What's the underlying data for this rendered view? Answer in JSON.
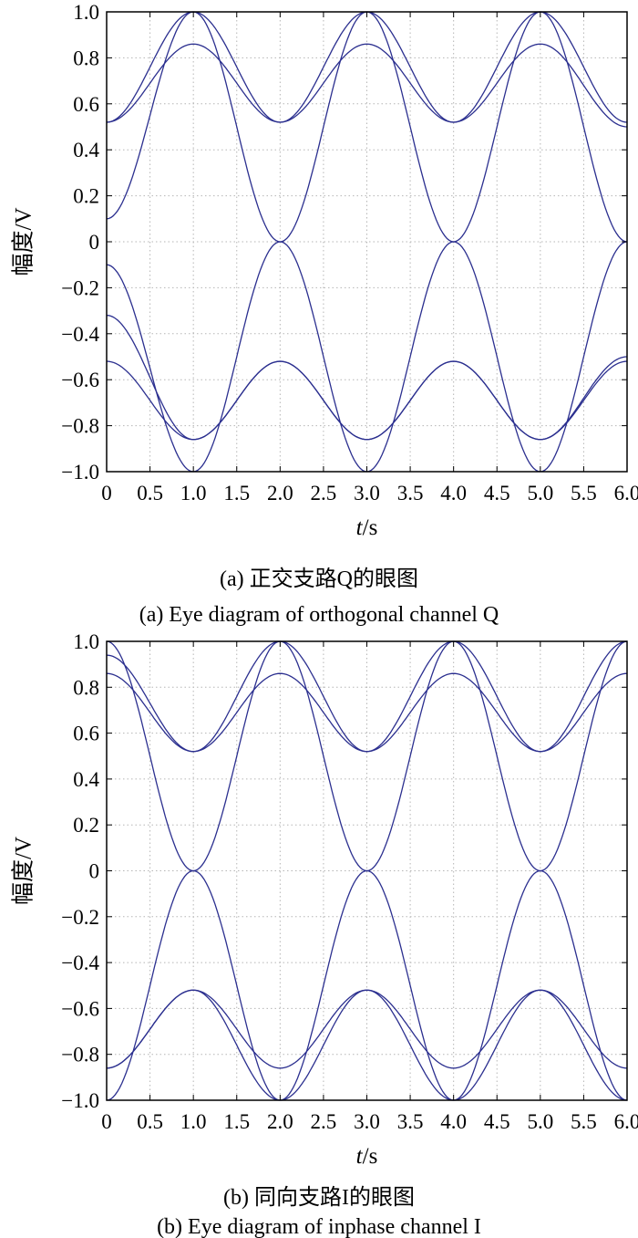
{
  "chart_data": [
    {
      "type": "line",
      "panel": "a",
      "caption_cn": "(a) 正交支路Q的眼图",
      "caption_en": "(a) Eye diagram of orthogonal channel Q",
      "xlabel_var": "t",
      "xlabel_unit": "/s",
      "ylabel": "幅度/V",
      "xlim": [
        0,
        6.0
      ],
      "ylim": [
        -1.0,
        1.0
      ],
      "xticks": [
        "0",
        "0.5",
        "1.0",
        "1.5",
        "2.0",
        "2.5",
        "3.0",
        "3.5",
        "4.0",
        "4.5",
        "5.0",
        "5.5",
        "6.0"
      ],
      "yticks": [
        "1.0",
        "0.8",
        "0.6",
        "0.4",
        "0.2",
        "0",
        "−0.2",
        "−0.4",
        "−0.6",
        "−0.8",
        "−1.0"
      ],
      "grid": true,
      "line_color": "#2b2f8f",
      "series": [
        {
          "x": [
            0,
            1,
            2,
            3,
            4,
            5,
            6
          ],
          "y": [
            0.1,
            1.0,
            0.0,
            1.0,
            0.0,
            1.0,
            0.0
          ]
        },
        {
          "x": [
            0,
            1,
            2,
            3,
            4,
            5,
            6
          ],
          "y": [
            -0.1,
            -1.0,
            0.0,
            -1.0,
            0.0,
            -1.0,
            0.0
          ]
        },
        {
          "x": [
            0,
            1,
            2,
            3,
            4,
            5,
            6
          ],
          "y": [
            0.52,
            0.86,
            0.52,
            0.86,
            0.52,
            0.86,
            0.5
          ]
        },
        {
          "x": [
            0,
            1,
            2,
            3,
            4,
            5,
            6
          ],
          "y": [
            -0.52,
            -0.86,
            -0.52,
            -0.86,
            -0.52,
            -0.86,
            -0.5
          ]
        },
        {
          "x": [
            0,
            1,
            2,
            3,
            4,
            5,
            6
          ],
          "y": [
            0.52,
            1.0,
            0.52,
            1.0,
            0.52,
            1.0,
            0.52
          ]
        },
        {
          "x": [
            0,
            1,
            2,
            3,
            4,
            5,
            6
          ],
          "y": [
            -0.32,
            -0.86,
            -0.52,
            -0.86,
            -0.52,
            -0.86,
            -0.52
          ]
        }
      ]
    },
    {
      "type": "line",
      "panel": "b",
      "caption_cn": "(b) 同向支路I的眼图",
      "caption_en": "(b) Eye diagram of inphase channel I",
      "xlabel_var": "t",
      "xlabel_unit": "/s",
      "ylabel": "幅度/V",
      "xlim": [
        0,
        6.0
      ],
      "ylim": [
        -1.0,
        1.0
      ],
      "xticks": [
        "0",
        "0.5",
        "1.0",
        "1.5",
        "2.0",
        "2.5",
        "3.0",
        "3.5",
        "4.0",
        "4.5",
        "5.0",
        "5.5",
        "6.0"
      ],
      "yticks": [
        "1.0",
        "0.8",
        "0.6",
        "0.4",
        "0.2",
        "0",
        "−0.2",
        "−0.4",
        "−0.6",
        "−0.8",
        "−1.0"
      ],
      "grid": true,
      "line_color": "#2b2f8f",
      "series": [
        {
          "x": [
            0,
            1,
            2,
            3,
            4,
            5,
            6
          ],
          "y": [
            1.0,
            0.0,
            1.0,
            0.0,
            1.0,
            0.0,
            1.0
          ]
        },
        {
          "x": [
            0,
            1,
            2,
            3,
            4,
            5,
            6
          ],
          "y": [
            -1.0,
            0.0,
            -1.0,
            0.0,
            -1.0,
            0.0,
            -1.0
          ]
        },
        {
          "x": [
            0,
            1,
            2,
            3,
            4,
            5,
            6
          ],
          "y": [
            0.86,
            0.52,
            0.86,
            0.52,
            0.86,
            0.52,
            0.86
          ]
        },
        {
          "x": [
            0,
            1,
            2,
            3,
            4,
            5,
            6
          ],
          "y": [
            -0.86,
            -0.52,
            -0.86,
            -0.52,
            -0.86,
            -0.52,
            -0.86
          ]
        },
        {
          "x": [
            0,
            1,
            2,
            3,
            4,
            5,
            6
          ],
          "y": [
            0.94,
            0.52,
            1.0,
            0.52,
            1.0,
            0.52,
            1.0
          ]
        },
        {
          "x": [
            0,
            1,
            2,
            3,
            4,
            5,
            6
          ],
          "y": [
            -0.86,
            -0.52,
            -1.0,
            -0.52,
            -1.0,
            -0.52,
            -1.0
          ]
        }
      ]
    }
  ]
}
